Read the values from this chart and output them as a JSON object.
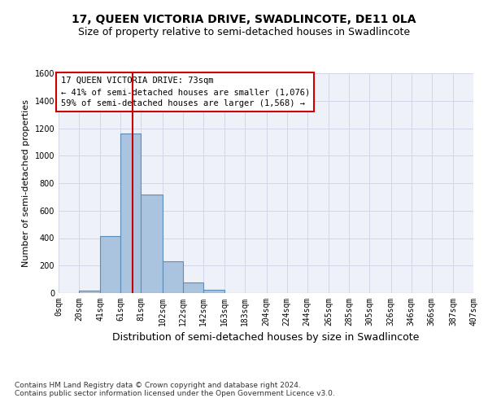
{
  "title1": "17, QUEEN VICTORIA DRIVE, SWADLINCOTE, DE11 0LA",
  "title2": "Size of property relative to semi-detached houses in Swadlincote",
  "xlabel": "Distribution of semi-detached houses by size in Swadlincote",
  "ylabel": "Number of semi-detached properties",
  "footer1": "Contains HM Land Registry data © Crown copyright and database right 2024.",
  "footer2": "Contains public sector information licensed under the Open Government Licence v3.0.",
  "bin_edges": [
    0,
    20,
    41,
    61,
    81,
    102,
    122,
    142,
    163,
    183,
    204,
    224,
    244,
    265,
    285,
    305,
    326,
    346,
    366,
    387,
    407
  ],
  "bar_heights": [
    0,
    20,
    415,
    1160,
    720,
    230,
    75,
    25,
    0,
    0,
    0,
    0,
    0,
    0,
    0,
    0,
    0,
    0,
    0,
    0
  ],
  "bar_color": "#aac4e0",
  "bar_edge_color": "#5b8db8",
  "property_size": 73,
  "ylim": [
    0,
    1600
  ],
  "yticks": [
    0,
    200,
    400,
    600,
    800,
    1000,
    1200,
    1400,
    1600
  ],
  "annotation_title": "17 QUEEN VICTORIA DRIVE: 73sqm",
  "annotation_line1": "← 41% of semi-detached houses are smaller (1,076)",
  "annotation_line2": "59% of semi-detached houses are larger (1,568) →",
  "annotation_box_color": "#cc0000",
  "vline_color": "#cc0000",
  "grid_color": "#d0d8e8",
  "bg_color": "#eef2f8",
  "title1_fontsize": 10,
  "title2_fontsize": 9,
  "xlabel_fontsize": 9,
  "ylabel_fontsize": 8,
  "tick_fontsize": 7,
  "annotation_fontsize": 7.5,
  "footer_fontsize": 6.5
}
